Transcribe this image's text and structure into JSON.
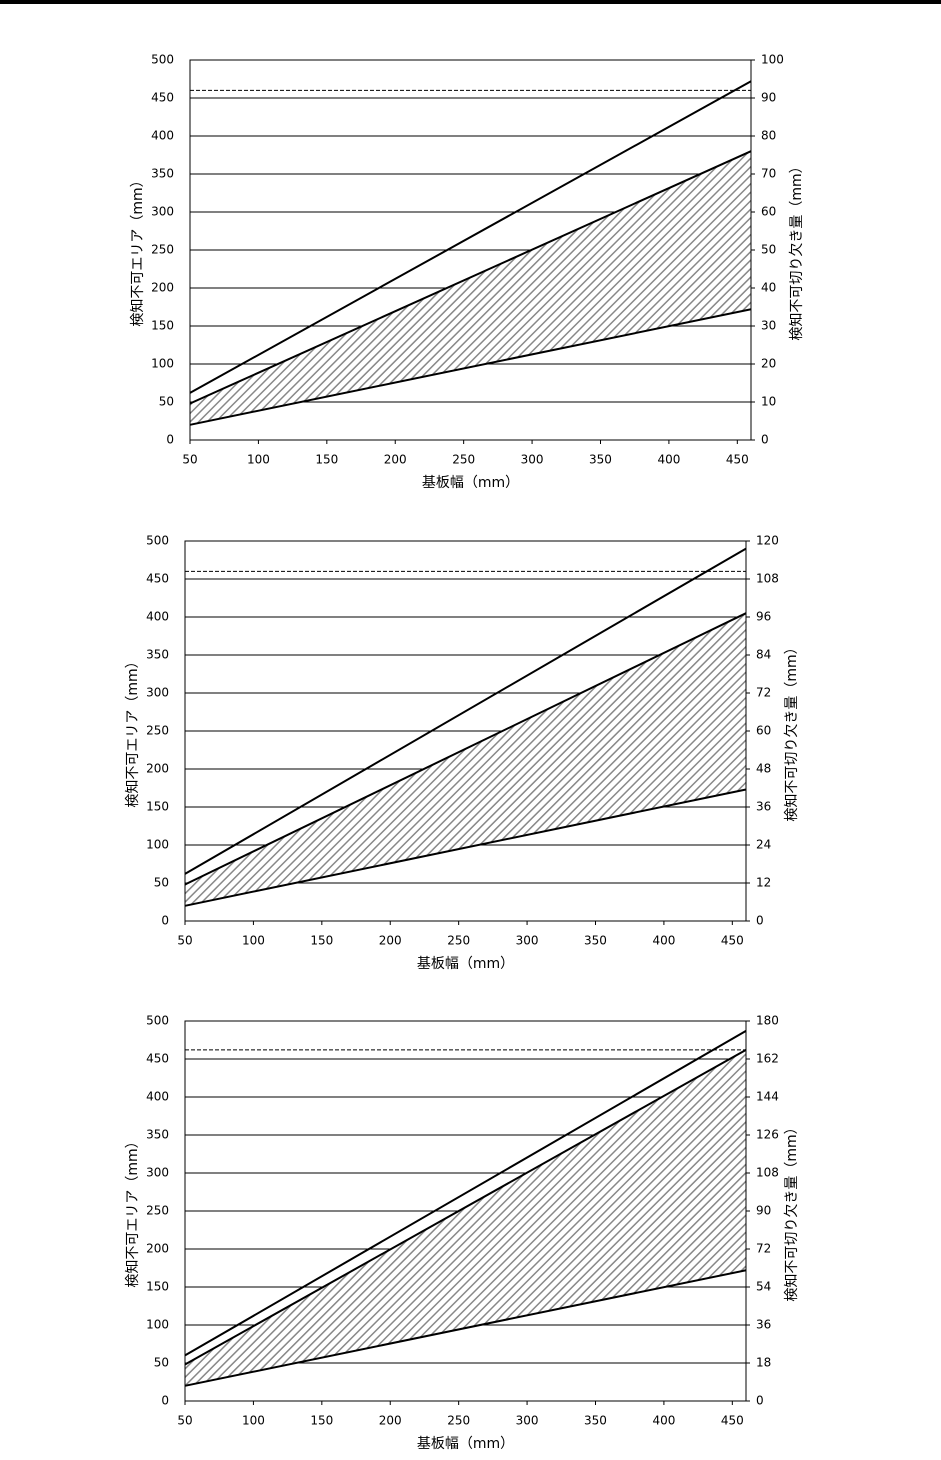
{
  "chart_data": [
    {
      "type": "line",
      "xlabel": "基板幅（mm）",
      "ylabel": "検知不可エリア（mm）",
      "y2label": "検知不可切り欠き量（mm）",
      "x": [
        50,
        460
      ],
      "xlim": [
        50,
        460
      ],
      "xticks": [
        50,
        100,
        150,
        200,
        250,
        300,
        350,
        400,
        450
      ],
      "ylim": [
        0,
        500
      ],
      "yticks": [
        0,
        50,
        100,
        150,
        200,
        250,
        300,
        350,
        400,
        450,
        500
      ],
      "y2lim": [
        0,
        100
      ],
      "y2ticks": [
        0,
        10,
        20,
        30,
        40,
        50,
        60,
        70,
        80,
        90,
        100
      ],
      "grid": true,
      "hatch_between": [
        1,
        2
      ],
      "series": [
        {
          "color": "#000000",
          "values": [
            62,
            472
          ]
        },
        {
          "color": "#000000",
          "values": [
            48,
            380
          ]
        },
        {
          "color": "#000000",
          "values": [
            20,
            172
          ]
        },
        {
          "color": "#000000",
          "values": [
            460,
            460
          ],
          "dashed": true
        }
      ]
    },
    {
      "type": "line",
      "xlabel": "基板幅（mm）",
      "ylabel": "検知不可エリア（mm）",
      "y2label": "検知不可切り欠き量（mm）",
      "x": [
        50,
        460
      ],
      "xlim": [
        50,
        460
      ],
      "xticks": [
        50,
        100,
        150,
        200,
        250,
        300,
        350,
        400,
        450
      ],
      "ylim": [
        0,
        500
      ],
      "yticks": [
        0,
        50,
        100,
        150,
        200,
        250,
        300,
        350,
        400,
        450,
        500
      ],
      "y2lim": [
        0,
        120
      ],
      "y2ticks": [
        0,
        12,
        24,
        36,
        48,
        60,
        72,
        84,
        96,
        108,
        120
      ],
      "grid": true,
      "hatch_between": [
        1,
        2
      ],
      "series": [
        {
          "color": "#000000",
          "values": [
            62,
            490
          ]
        },
        {
          "color": "#000000",
          "values": [
            48,
            405
          ]
        },
        {
          "color": "#000000",
          "values": [
            20,
            173
          ]
        },
        {
          "color": "#000000",
          "values": [
            460,
            460
          ],
          "dashed": true
        }
      ]
    },
    {
      "type": "line",
      "xlabel": "基板幅（mm）",
      "ylabel": "検知不可エリア（mm）",
      "y2label": "検知不可切り欠き量（mm）",
      "x": [
        50,
        460
      ],
      "xlim": [
        50,
        460
      ],
      "xticks": [
        50,
        100,
        150,
        200,
        250,
        300,
        350,
        400,
        450
      ],
      "ylim": [
        0,
        500
      ],
      "yticks": [
        0,
        50,
        100,
        150,
        200,
        250,
        300,
        350,
        400,
        450,
        500
      ],
      "y2lim": [
        0,
        180
      ],
      "y2ticks": [
        0,
        18,
        36,
        54,
        72,
        90,
        108,
        126,
        144,
        162,
        180
      ],
      "grid": true,
      "hatch_between": [
        1,
        2
      ],
      "series": [
        {
          "color": "#000000",
          "values": [
            60,
            487
          ]
        },
        {
          "color": "#000000",
          "values": [
            48,
            462
          ]
        },
        {
          "color": "#000000",
          "values": [
            20,
            172
          ]
        },
        {
          "color": "#000000",
          "values": [
            462,
            462
          ],
          "dashed": true
        }
      ]
    }
  ]
}
